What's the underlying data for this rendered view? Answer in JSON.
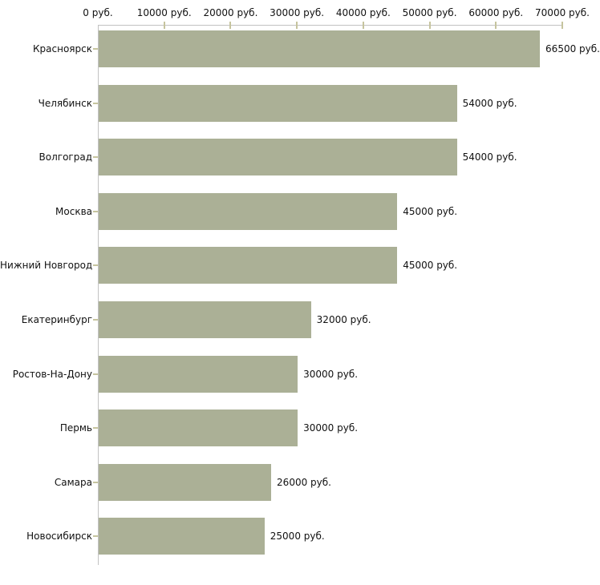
{
  "chart_data": {
    "type": "bar",
    "orientation": "horizontal",
    "title": "",
    "xlabel": "",
    "ylabel": "",
    "categories": [
      "Красноярск",
      "Челябинск",
      "Волгоград",
      "Москва",
      "Нижний Новгород",
      "Екатеринбург",
      "Ростов-На-Дону",
      "Пермь",
      "Самара",
      "Новосибирск"
    ],
    "values": [
      66500,
      54000,
      54000,
      45000,
      45000,
      32000,
      30000,
      30000,
      26000,
      25000
    ],
    "value_labels": [
      "66500 руб.",
      "54000 руб.",
      "54000 руб.",
      "45000 руб.",
      "45000 руб.",
      "32000 руб.",
      "30000 руб.",
      "30000 руб.",
      "26000 руб.",
      "25000 руб."
    ],
    "x_axis": {
      "position": "top",
      "xlim": [
        0,
        70000
      ],
      "ticks": [
        0,
        10000,
        20000,
        30000,
        40000,
        50000,
        60000,
        70000
      ],
      "tick_labels": [
        "0 руб.",
        "10000 руб.",
        "20000 руб.",
        "30000 руб.",
        "40000 руб.",
        "50000 руб.",
        "60000 руб.",
        "70000 руб."
      ],
      "grid": false
    },
    "legend": null,
    "colors": {
      "bar_fill": "#abb096",
      "axis_line": "#c2c2c2",
      "tick_mark": "#c6c49e",
      "text": "#111111",
      "background": "#ffffff"
    }
  }
}
